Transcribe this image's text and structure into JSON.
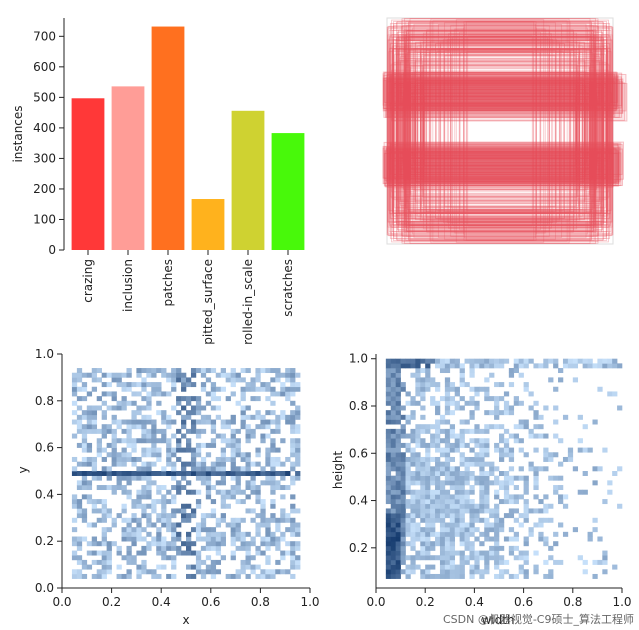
{
  "chart_data": [
    {
      "type": "bar",
      "ylabel": "instances",
      "categories": [
        "crazing",
        "inclusion",
        "patches",
        "pitted_surface",
        "rolled-in_scale",
        "scratches"
      ],
      "values": [
        497,
        536,
        732,
        167,
        456,
        383
      ],
      "colors": [
        "#ff3838",
        "#ff9d97",
        "#ff701f",
        "#ffb21d",
        "#cfd231",
        "#48f90a"
      ],
      "ylim": [
        0,
        760
      ],
      "yticks": [
        0,
        100,
        200,
        300,
        400,
        500,
        600,
        700
      ]
    },
    {
      "type": "heatmap",
      "description_label": "",
      "color": "#e8525e",
      "xlim": [
        0,
        1
      ],
      "ylim": [
        0,
        1
      ]
    },
    {
      "type": "heatmap",
      "xlabel": "x",
      "ylabel": "y",
      "xlim": [
        0,
        1
      ],
      "ylim": [
        0,
        1
      ],
      "xticks": [
        "0.0",
        "0.2",
        "0.4",
        "0.6",
        "0.8",
        "1.0"
      ],
      "yticks": [
        "0.0",
        "0.2",
        "0.4",
        "0.6",
        "0.8",
        "1.0"
      ]
    },
    {
      "type": "heatmap",
      "xlabel": "width",
      "ylabel": "height",
      "xlim": [
        0,
        1
      ],
      "ylim": [
        0.03,
        1.02
      ],
      "xticks": [
        "0.0",
        "0.2",
        "0.4",
        "0.6",
        "0.8",
        "1.0"
      ],
      "yticks": [
        "0.2",
        "0.4",
        "0.6",
        "0.8",
        "1.0"
      ]
    }
  ],
  "watermark": "CSDN @机器视觉-C9硕士_算法工程师"
}
